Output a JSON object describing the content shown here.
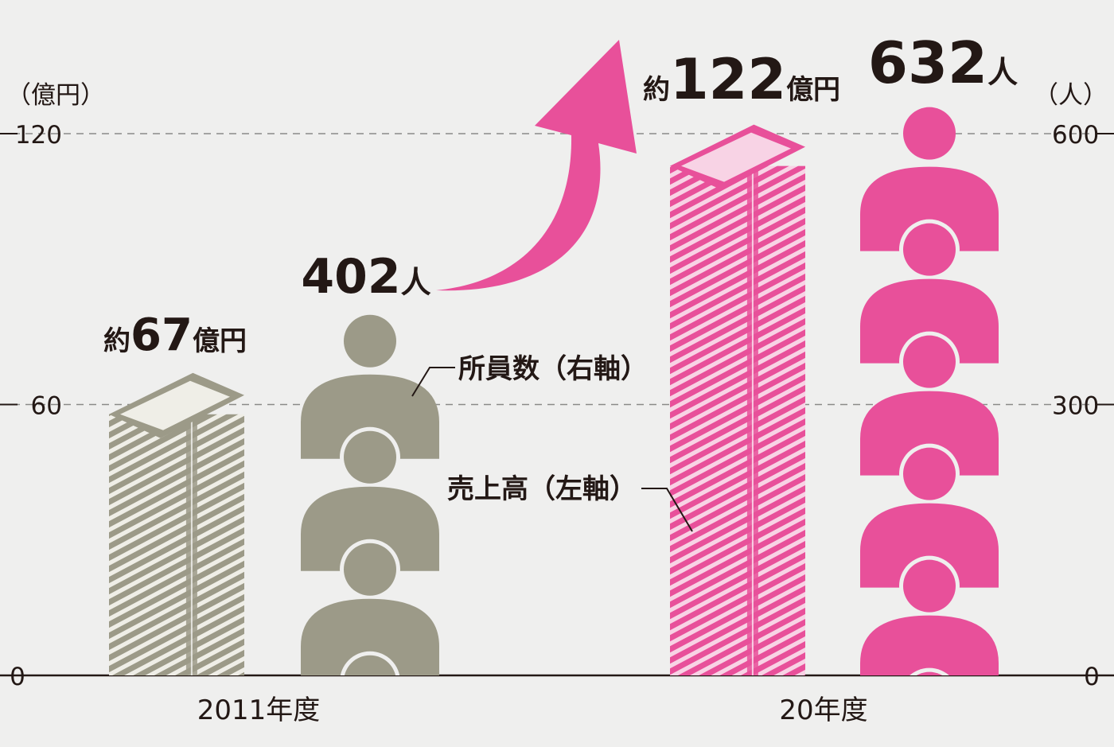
{
  "chart_data": {
    "type": "bar",
    "categories": [
      "2011年度",
      "20年度"
    ],
    "series": [
      {
        "name": "売上高（左軸）",
        "axis": "left",
        "values": [
          67,
          122
        ],
        "colors": [
          "#9c9a88",
          "#e8509a"
        ],
        "labels": [
          {
            "prefix": "約",
            "number": "67",
            "suffix": "億円"
          },
          {
            "prefix": "約",
            "number": "122",
            "suffix": "億円"
          }
        ]
      },
      {
        "name": "所員数（右軸）",
        "axis": "right",
        "values": [
          402,
          632
        ],
        "colors": [
          "#9c9a88",
          "#e8509a"
        ],
        "labels": [
          {
            "number": "402",
            "suffix": "人"
          },
          {
            "number": "632",
            "suffix": "人"
          }
        ]
      }
    ],
    "left_axis": {
      "unit": "（億円）",
      "ticks": [
        0,
        60,
        120
      ],
      "ylim": [
        0,
        120
      ]
    },
    "right_axis": {
      "unit": "（人）",
      "ticks": [
        0,
        300,
        600
      ],
      "ylim": [
        0,
        600
      ]
    },
    "grid": true,
    "arrow": true
  }
}
